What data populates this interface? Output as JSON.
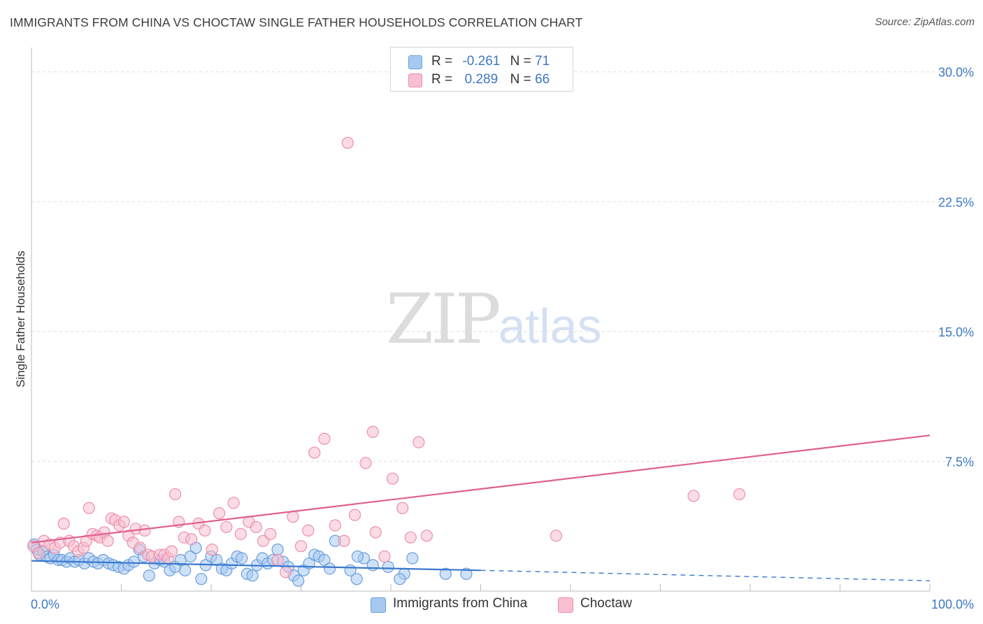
{
  "header": {
    "title": "IMMIGRANTS FROM CHINA VS CHOCTAW SINGLE FATHER HOUSEHOLDS CORRELATION CHART",
    "source": "Source: ZipAtlas.com"
  },
  "watermark": {
    "part1": "ZIP",
    "part2": "atlas"
  },
  "legend": {
    "r_label": "R =",
    "n_label": "N =",
    "rows": [
      {
        "r": "-0.261",
        "n": "71",
        "color": "#a7c8f0",
        "border": "#6a9fdc"
      },
      {
        "r": "0.289",
        "n": "66",
        "color": "#f7bfd0",
        "border": "#ec8fab"
      }
    ]
  },
  "bottom_legend": [
    {
      "label": "Immigrants from China",
      "color": "#a7c8f0",
      "border": "#6a9fdc"
    },
    {
      "label": "Choctaw",
      "color": "#f7bfd0",
      "border": "#ec8fab"
    }
  ],
  "chart_data": {
    "type": "scatter",
    "title": "IMMIGRANTS FROM CHINA VS CHOCTAW SINGLE FATHER HOUSEHOLDS CORRELATION CHART",
    "xlabel": "",
    "ylabel": "Single Father Households",
    "xlim": [
      0,
      100
    ],
    "ylim": [
      0,
      31
    ],
    "x_tick_labels": [
      "0.0%",
      "100.0%"
    ],
    "y_ticks": [
      7.5,
      15.0,
      22.5,
      30.0
    ],
    "y_tick_labels": [
      "7.5%",
      "15.0%",
      "22.5%",
      "30.0%"
    ],
    "grid": true,
    "series": [
      {
        "name": "Immigrants from China",
        "color": "#6a9fdc",
        "fill": "#a7c8f0",
        "line_color": "#3a78cc",
        "trend": {
          "x0": 0,
          "y0": 1.75,
          "x1": 50,
          "y1": 1.2,
          "dash_x1": 100,
          "dash_y1": 0.6
        },
        "points": [
          [
            0.3,
            2.7
          ],
          [
            0.6,
            2.4
          ],
          [
            0.9,
            2.1
          ],
          [
            1.3,
            2.3
          ],
          [
            1.7,
            2.0
          ],
          [
            2.1,
            1.9
          ],
          [
            2.5,
            2.1
          ],
          [
            3.0,
            1.8
          ],
          [
            3.4,
            1.8
          ],
          [
            3.9,
            1.7
          ],
          [
            4.3,
            1.9
          ],
          [
            4.8,
            1.7
          ],
          [
            5.3,
            1.8
          ],
          [
            5.9,
            1.6
          ],
          [
            6.4,
            1.9
          ],
          [
            6.9,
            1.7
          ],
          [
            7.4,
            1.6
          ],
          [
            8.0,
            1.8
          ],
          [
            8.6,
            1.6
          ],
          [
            9.1,
            1.5
          ],
          [
            9.7,
            1.4
          ],
          [
            10.3,
            1.3
          ],
          [
            10.8,
            1.5
          ],
          [
            11.4,
            1.7
          ],
          [
            12.0,
            2.4
          ],
          [
            12.5,
            2.0
          ],
          [
            13.1,
            0.9
          ],
          [
            13.7,
            1.6
          ],
          [
            14.3,
            1.8
          ],
          [
            14.8,
            1.7
          ],
          [
            15.4,
            1.2
          ],
          [
            16.0,
            1.4
          ],
          [
            16.6,
            1.8
          ],
          [
            17.1,
            1.2
          ],
          [
            17.7,
            2.0
          ],
          [
            18.3,
            2.5
          ],
          [
            18.9,
            0.7
          ],
          [
            19.4,
            1.5
          ],
          [
            20.0,
            2.0
          ],
          [
            20.6,
            1.8
          ],
          [
            21.2,
            1.3
          ],
          [
            21.7,
            1.2
          ],
          [
            22.3,
            1.6
          ],
          [
            22.9,
            2.0
          ],
          [
            23.4,
            1.9
          ],
          [
            24.0,
            1.0
          ],
          [
            24.6,
            0.9
          ],
          [
            25.1,
            1.5
          ],
          [
            25.7,
            1.9
          ],
          [
            26.3,
            1.6
          ],
          [
            26.9,
            1.8
          ],
          [
            27.4,
            2.4
          ],
          [
            28.0,
            1.7
          ],
          [
            28.6,
            1.4
          ],
          [
            29.2,
            0.9
          ],
          [
            29.7,
            0.6
          ],
          [
            30.3,
            1.2
          ],
          [
            30.9,
            1.6
          ],
          [
            31.5,
            2.1
          ],
          [
            32.0,
            2.0
          ],
          [
            32.6,
            1.8
          ],
          [
            33.2,
            1.3
          ],
          [
            33.8,
            2.9
          ],
          [
            35.5,
            1.2
          ],
          [
            36.2,
            0.7
          ],
          [
            37.0,
            1.9
          ],
          [
            38.0,
            1.5
          ],
          [
            39.7,
            1.4
          ],
          [
            41.5,
            1.0
          ],
          [
            42.4,
            1.9
          ],
          [
            48.4,
            1.0
          ]
        ]
      },
      {
        "name": "Choctaw",
        "color": "#ec8fab",
        "fill": "#f7bfd0",
        "line_color": "#e0608e",
        "trend": {
          "x0": 0,
          "y0": 2.8,
          "x1": 100,
          "y1": 9.0
        },
        "points": [
          [
            0.2,
            2.6
          ],
          [
            0.8,
            2.2
          ],
          [
            1.4,
            2.9
          ],
          [
            2.0,
            2.7
          ],
          [
            2.6,
            2.5
          ],
          [
            3.2,
            2.8
          ],
          [
            3.6,
            3.9
          ],
          [
            4.2,
            2.9
          ],
          [
            4.7,
            2.6
          ],
          [
            5.2,
            2.3
          ],
          [
            5.8,
            2.5
          ],
          [
            6.1,
            2.9
          ],
          [
            6.4,
            4.8
          ],
          [
            6.8,
            3.3
          ],
          [
            7.3,
            3.2
          ],
          [
            7.6,
            3.1
          ],
          [
            8.1,
            3.4
          ],
          [
            8.5,
            2.9
          ],
          [
            8.9,
            4.2
          ],
          [
            9.3,
            4.1
          ],
          [
            9.8,
            3.8
          ],
          [
            10.3,
            4.0
          ],
          [
            10.8,
            3.2
          ],
          [
            11.3,
            2.8
          ],
          [
            11.6,
            3.6
          ],
          [
            12.1,
            2.5
          ],
          [
            12.6,
            3.5
          ],
          [
            13.0,
            2.1
          ],
          [
            13.4,
            2.0
          ],
          [
            14.3,
            2.1
          ],
          [
            14.8,
            2.1
          ],
          [
            15.2,
            1.9
          ],
          [
            15.6,
            2.3
          ],
          [
            16.0,
            5.6
          ],
          [
            16.4,
            4.0
          ],
          [
            17.0,
            3.1
          ],
          [
            17.8,
            3.0
          ],
          [
            18.6,
            3.9
          ],
          [
            19.3,
            3.5
          ],
          [
            20.1,
            2.4
          ],
          [
            20.9,
            4.5
          ],
          [
            21.7,
            3.7
          ],
          [
            22.5,
            5.1
          ],
          [
            23.3,
            3.3
          ],
          [
            24.2,
            4.0
          ],
          [
            25.0,
            3.7
          ],
          [
            25.8,
            2.9
          ],
          [
            26.6,
            3.3
          ],
          [
            27.4,
            1.8
          ],
          [
            28.3,
            1.1
          ],
          [
            29.1,
            4.3
          ],
          [
            30.0,
            2.6
          ],
          [
            30.8,
            3.5
          ],
          [
            31.5,
            8.0
          ],
          [
            32.6,
            8.8
          ],
          [
            33.8,
            3.8
          ],
          [
            34.8,
            2.9
          ],
          [
            36.0,
            4.4
          ],
          [
            37.2,
            7.4
          ],
          [
            38.3,
            3.4
          ],
          [
            39.3,
            2.0
          ],
          [
            40.2,
            6.5
          ],
          [
            41.3,
            4.8
          ],
          [
            42.2,
            3.1
          ],
          [
            43.1,
            8.6
          ],
          [
            44.0,
            3.2
          ]
        ]
      }
    ],
    "extra_points": {
      "Choctaw": [
        [
          35.2,
          25.9
        ],
        [
          38.0,
          9.2
        ],
        [
          58.4,
          3.2
        ],
        [
          73.7,
          5.5
        ],
        [
          78.8,
          5.6
        ]
      ],
      "Immigrants from China": [
        [
          36.3,
          2.0
        ],
        [
          41.0,
          0.7
        ],
        [
          46.1,
          1.0
        ]
      ]
    }
  }
}
